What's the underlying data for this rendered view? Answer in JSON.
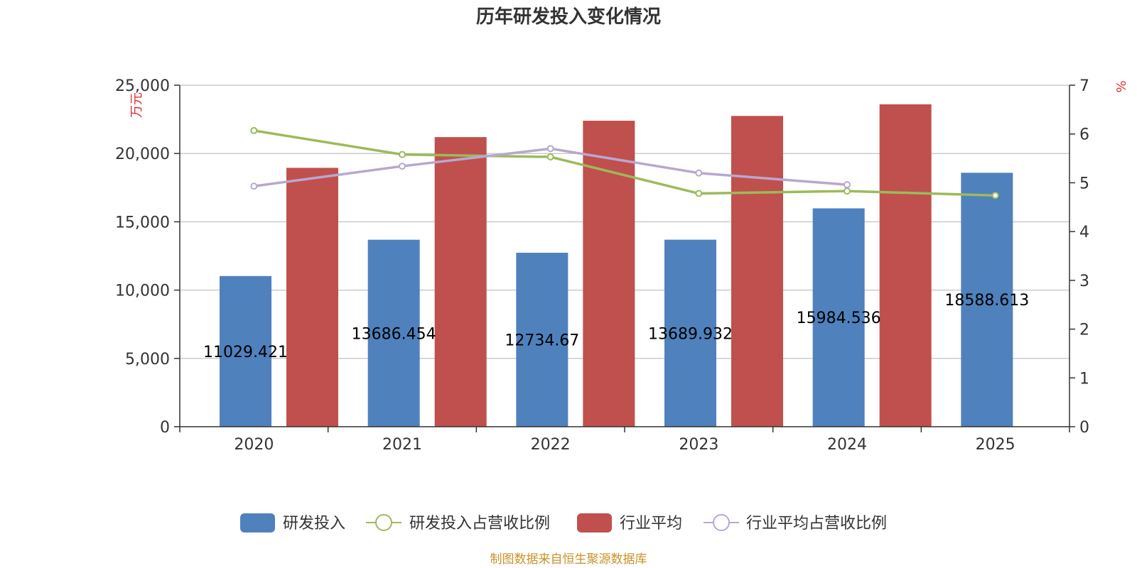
{
  "chart_data": {
    "type": "bar",
    "title": "历年研发投入变化情况",
    "categories": [
      "2020",
      "2021",
      "2022",
      "2023",
      "2024",
      "2025"
    ],
    "y_left": {
      "unit": "万元",
      "min": 0,
      "max": 25000,
      "ticks": [
        "0",
        "5,000",
        "10,000",
        "15,000",
        "20,000",
        "25,000"
      ],
      "tick_values": [
        0,
        5000,
        10000,
        15000,
        20000,
        25000
      ]
    },
    "y_right": {
      "unit": "%",
      "min": 0,
      "max": 7,
      "ticks": [
        "0",
        "1",
        "2",
        "3",
        "4",
        "5",
        "6",
        "7"
      ],
      "tick_values": [
        0,
        1,
        2,
        3,
        4,
        5,
        6,
        7
      ]
    },
    "series": [
      {
        "name": "研发投入",
        "type": "bar",
        "axis": "left",
        "color": "#4f81bd",
        "values": [
          11029.421,
          13686.454,
          12734.67,
          13689.932,
          15984.536,
          18588.613
        ],
        "labels": [
          "11029.421",
          "13686.454",
          "12734.67",
          "13689.932",
          "15984.536",
          "18588.613"
        ]
      },
      {
        "name": "研发投入占营收比例",
        "type": "line",
        "axis": "right",
        "color": "#9bbb59",
        "values": [
          6.07,
          5.58,
          5.53,
          4.78,
          4.83,
          4.74
        ]
      },
      {
        "name": "行业平均",
        "type": "bar",
        "axis": "left",
        "color": "#c0504d",
        "values": [
          18950,
          21200,
          22400,
          22750,
          23600,
          null
        ]
      },
      {
        "name": "行业平均占营收比例",
        "type": "line",
        "axis": "right",
        "color": "#b7a8cf",
        "values": [
          4.93,
          5.34,
          5.7,
          5.2,
          4.96,
          null
        ]
      }
    ],
    "grid": true,
    "legend_position": "bottom"
  },
  "source_text": "制图数据来自恒生聚源数据库",
  "colors": {
    "axis": "#333333",
    "grid": "#cccccc",
    "unit": "#e03030",
    "source": "#c8922a"
  }
}
